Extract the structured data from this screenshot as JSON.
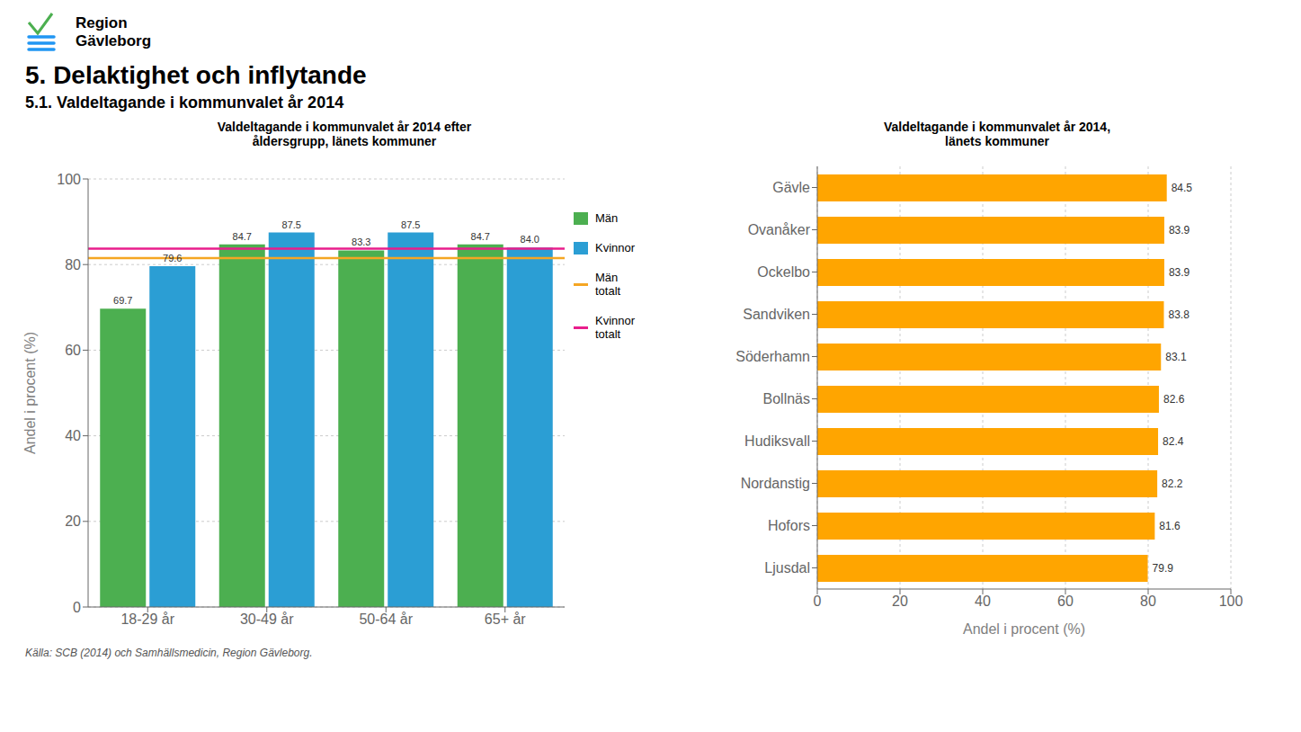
{
  "title": "5. Delaktighet och inflytande",
  "subtitle": "5.1. Valdeltagande i kommunvalet år 2014",
  "annotations": [
    "Region\nGävleborg"
  ],
  "source": "Källa: SCB (2014) och Samhällsmedicin, Region Gävleborg.",
  "chart_data": [
    {
      "type": "bar",
      "title": "Valdeltagande i kommunvalet år 2014 efter\nåldersgrupp, länets kommuner",
      "categories": [
        "18-29 år",
        "30-49 år",
        "50-64 år",
        "65+ år"
      ],
      "series": [
        {
          "name": "Män",
          "color": "#4CAF50",
          "values": [
            69.7,
            84.7,
            83.3,
            84.7
          ]
        },
        {
          "name": "Kvinnor",
          "color": "#2B9ED4",
          "values": [
            79.6,
            87.5,
            87.5,
            84.0
          ],
          "value_labels": [
            "79.6",
            "87.5",
            "87.5",
            "84.0"
          ]
        }
      ],
      "reference_lines": [
        {
          "name": "Män\ntotalt",
          "value": 81.5,
          "color": "#F5A623"
        },
        {
          "name": "Kvinnor\ntotalt",
          "value": 83.7,
          "color": "#E91E8C"
        }
      ],
      "ylabel": "Andel i procent (%)",
      "ylim": [
        0,
        100
      ],
      "yticks": [
        0,
        20,
        40,
        60,
        80,
        100
      ],
      "grid": true,
      "legend": "right",
      "data_labels": true
    },
    {
      "type": "bar",
      "orientation": "horizontal",
      "title": "Valdeltagande i kommunvalet år 2014,\nlänets kommuner",
      "categories": [
        "Gävle",
        "Ovanåker",
        "Ockelbo",
        "Sandviken",
        "Söderhamn",
        "Bollnäs",
        "Hudiksvall",
        "Nordanstig",
        "Hofors",
        "Ljusdal"
      ],
      "values": [
        84.5,
        83.9,
        83.9,
        83.8,
        83.1,
        82.6,
        82.4,
        82.2,
        81.6,
        79.9
      ],
      "color": "#FFA500",
      "xlabel": "Andel i procent (%)",
      "xlim": [
        0,
        100
      ],
      "xticks": [
        0,
        20,
        40,
        60,
        80,
        100
      ],
      "grid": true,
      "data_labels": true
    }
  ]
}
